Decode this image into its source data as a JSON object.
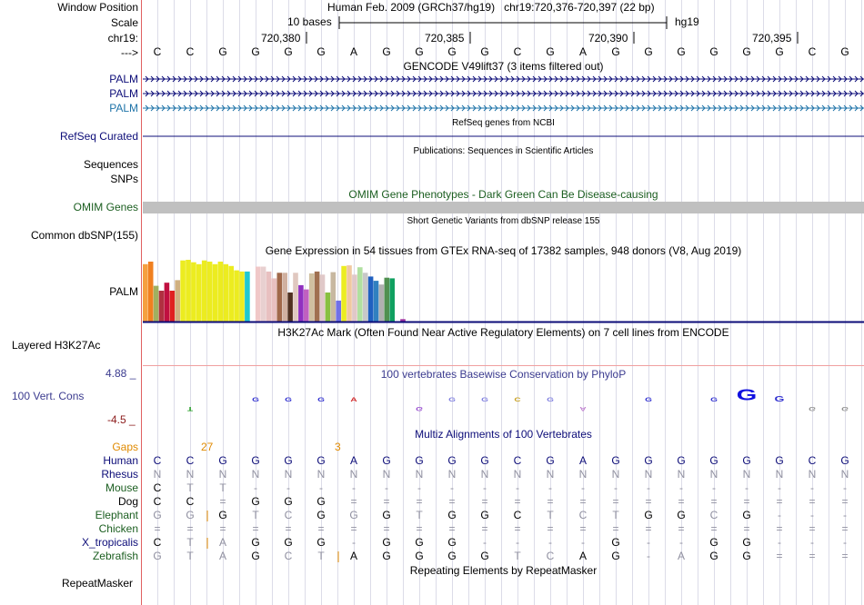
{
  "header": {
    "window_position_label": "Window Position",
    "title": "Human Feb. 2009 (GRCh37/hg19)",
    "position": "chr19:720,376-720,397 (22 bp)",
    "scale_label": "Scale",
    "scale_value": "10 bases",
    "assembly": "hg19",
    "chrom_label": "chr19:",
    "ticks": [
      "720,380",
      "720,385",
      "720,390",
      "720,395"
    ],
    "strand_label": "--->"
  },
  "sequence": [
    "C",
    "C",
    "G",
    "G",
    "G",
    "G",
    "A",
    "G",
    "G",
    "G",
    "G",
    "C",
    "G",
    "A",
    "G",
    "G",
    "G",
    "G",
    "G",
    "G",
    "C",
    "G"
  ],
  "gencode": {
    "title": "GENCODE V49lift37 (3 items filtered out)",
    "items": [
      {
        "label": "PALM",
        "color": "#0c0c78"
      },
      {
        "label": "PALM",
        "color": "#0c0c78"
      },
      {
        "label": "PALM",
        "color": "#1e73a8"
      }
    ]
  },
  "refseq": {
    "title": "RefSeq genes from NCBI",
    "label": "RefSeq Curated",
    "color": "#0c0c78"
  },
  "publications": {
    "title": "Publications: Sequences in Scientific Articles",
    "labels": [
      "Sequences",
      "SNPs"
    ]
  },
  "omim": {
    "title": "OMIM Gene Phenotypes - Dark Green Can Be Disease-causing",
    "label": "OMIM Genes",
    "color": "#1b5e20"
  },
  "dbsnp": {
    "title": "Short Genetic Variants from dbSNP release 155",
    "label": "Common dbSNP(155)"
  },
  "gtex": {
    "title": "Gene Expression in 54 tissues from GTEx RNA-seq of 17382 samples, 948 donors (V8, Aug 2019)",
    "label": "PALM",
    "bars": [
      {
        "v": 0.93,
        "c": "#f5a040"
      },
      {
        "v": 0.97,
        "c": "#f08020"
      },
      {
        "v": 0.58,
        "c": "#a0b060"
      },
      {
        "v": 0.5,
        "c": "#b03040"
      },
      {
        "v": 0.63,
        "c": "#c01040"
      },
      {
        "v": 0.5,
        "c": "#e02020"
      },
      {
        "v": 0.67,
        "c": "#d0b080"
      },
      {
        "v": 0.99,
        "c": "#ecec20"
      },
      {
        "v": 1.0,
        "c": "#ecec20"
      },
      {
        "v": 0.96,
        "c": "#ecec20"
      },
      {
        "v": 0.93,
        "c": "#ecec20"
      },
      {
        "v": 0.99,
        "c": "#ecec20"
      },
      {
        "v": 0.97,
        "c": "#ecec20"
      },
      {
        "v": 0.93,
        "c": "#ecec20"
      },
      {
        "v": 0.97,
        "c": "#ecec20"
      },
      {
        "v": 0.93,
        "c": "#ecec20"
      },
      {
        "v": 0.9,
        "c": "#ecec20"
      },
      {
        "v": 0.83,
        "c": "#ecec20"
      },
      {
        "v": 0.81,
        "c": "#ecec20"
      },
      {
        "v": 0.81,
        "c": "#20c8d0"
      },
      {
        "v": 0.0,
        "c": "#ffffff"
      },
      {
        "v": 0.89,
        "c": "#f0c8c8"
      },
      {
        "v": 0.89,
        "c": "#e8d0d0"
      },
      {
        "v": 0.81,
        "c": "#e8c0c0"
      },
      {
        "v": 0.7,
        "c": "#e8c0c0"
      },
      {
        "v": 0.79,
        "c": "#a0684a"
      },
      {
        "v": 0.79,
        "c": "#d0b0a0"
      },
      {
        "v": 0.47,
        "c": "#503020"
      },
      {
        "v": 0.79,
        "c": "#e0c8c0"
      },
      {
        "v": 0.59,
        "c": "#9030c0"
      },
      {
        "v": 0.52,
        "c": "#c060c0"
      },
      {
        "v": 0.78,
        "c": "#d0c0a0"
      },
      {
        "v": 0.81,
        "c": "#a07050"
      },
      {
        "v": 0.76,
        "c": "#e0c8c8"
      },
      {
        "v": 0.47,
        "c": "#88c040"
      },
      {
        "v": 0.8,
        "c": "#c8b8a0"
      },
      {
        "v": 0.34,
        "c": "#7070e8"
      },
      {
        "v": 0.9,
        "c": "#ecec20"
      },
      {
        "v": 0.91,
        "c": "#f0c8a0"
      },
      {
        "v": 0.76,
        "c": "#e0c8c8"
      },
      {
        "v": 0.88,
        "c": "#b0e0a0"
      },
      {
        "v": 0.79,
        "c": "#c8c8c8"
      },
      {
        "v": 0.73,
        "c": "#2060c0"
      },
      {
        "v": 0.66,
        "c": "#3080c0"
      },
      {
        "v": 0.6,
        "c": "#b0b0b0"
      },
      {
        "v": 0.71,
        "c": "#509050"
      },
      {
        "v": 0.7,
        "c": "#10a060"
      },
      {
        "v": 0.0,
        "c": "#ffffff"
      },
      {
        "v": 0.04,
        "c": "#a030a0"
      },
      {
        "v": 0.0,
        "c": "#ffffff"
      },
      {
        "v": 0.0,
        "c": "#ffffff"
      },
      {
        "v": 0.0,
        "c": "#ffffff"
      },
      {
        "v": 0.0,
        "c": "#ffffff"
      },
      {
        "v": 0.0,
        "c": "#ffffff"
      }
    ]
  },
  "h3k27ac": {
    "title": "H3K27Ac Mark (Often Found Near Active Regulatory Elements) on 7 cell lines from ENCODE",
    "label": "Layered H3K27Ac"
  },
  "conservation": {
    "title": "100 vertebrates Basewise Conservation by PhyloP",
    "label": "100 Vert. Cons",
    "ymax": "4.88 _",
    "ymin": "-4.5 _",
    "logo": [
      {
        "col": 1,
        "letter": "T",
        "v": -0.6,
        "color": "#1a9a1a"
      },
      {
        "col": 3,
        "letter": "G",
        "v": 0.3,
        "color": "#3030d0"
      },
      {
        "col": 4,
        "letter": "G",
        "v": 0.3,
        "color": "#3030d0"
      },
      {
        "col": 5,
        "letter": "G",
        "v": 0.4,
        "color": "#3030d0"
      },
      {
        "col": 6,
        "letter": "A",
        "v": 0.2,
        "color": "#d02020"
      },
      {
        "col": 8,
        "letter": "G",
        "v": -0.3,
        "color": "#9a50d0"
      },
      {
        "col": 9,
        "letter": "G",
        "v": 0.2,
        "color": "#8080e0"
      },
      {
        "col": 10,
        "letter": "G",
        "v": 0.2,
        "color": "#8080e0"
      },
      {
        "col": 11,
        "letter": "C",
        "v": 0.5,
        "color": "#c8a020"
      },
      {
        "col": 12,
        "letter": "G",
        "v": 0.2,
        "color": "#8080e0"
      },
      {
        "col": 13,
        "letter": "A",
        "v": -0.2,
        "color": "#c080d0"
      },
      {
        "col": 15,
        "letter": "G",
        "v": 0.3,
        "color": "#3030d0"
      },
      {
        "col": 17,
        "letter": "G",
        "v": 0.3,
        "color": "#3030d0"
      },
      {
        "col": 18,
        "letter": "G",
        "v": 1.8,
        "color": "#1010e0"
      },
      {
        "col": 19,
        "letter": "G",
        "v": 0.9,
        "color": "#3030d0"
      },
      {
        "col": 20,
        "letter": "G",
        "v": -0.3,
        "color": "#909090"
      },
      {
        "col": 21,
        "letter": "G",
        "v": -0.3,
        "color": "#909090"
      }
    ]
  },
  "multiz": {
    "title": "Multiz Alignments of 100 Vertebrates",
    "gaps_label": "Gaps",
    "gap_markers": [
      {
        "after_col": 1,
        "text": "27"
      },
      {
        "after_col": 5,
        "text": "3"
      }
    ],
    "rows": [
      {
        "species": "Human",
        "style": "human",
        "bases": [
          "C",
          "C",
          "G",
          "G",
          "G",
          "G",
          "A",
          "G",
          "G",
          "G",
          "G",
          "C",
          "G",
          "A",
          "G",
          "G",
          "G",
          "G",
          "G",
          "G",
          "C",
          "G"
        ]
      },
      {
        "species": "Rhesus",
        "style": "gray",
        "bases": [
          "N",
          "N",
          "N",
          "N",
          "N",
          "N",
          "N",
          "N",
          "N",
          "N",
          "N",
          "N",
          "N",
          "N",
          "N",
          "N",
          "N",
          "N",
          "N",
          "N",
          "N",
          "N"
        ]
      },
      {
        "species": "Mouse",
        "style": "mixed",
        "bases": [
          "C",
          "T",
          "T",
          "-",
          "-",
          "-",
          "-",
          "-",
          "-",
          "-",
          "-",
          "-",
          "-",
          "-",
          "-",
          "-",
          "-",
          "-",
          "-",
          "-",
          "-",
          "-"
        ]
      },
      {
        "species": "Dog",
        "style": "mixed",
        "bases": [
          "C",
          "C",
          "=",
          "G",
          "G",
          "G",
          "=",
          "=",
          "=",
          "=",
          "=",
          "=",
          "=",
          "=",
          "=",
          "=",
          "=",
          "=",
          "=",
          "=",
          "=",
          "="
        ]
      },
      {
        "species": "Elephant",
        "style": "mixed",
        "bases": [
          "G",
          "G",
          "G",
          "T",
          "C",
          "G",
          "G",
          "G",
          "T",
          "G",
          "G",
          "C",
          "T",
          "C",
          "T",
          "G",
          "G",
          "C",
          "G",
          "-",
          "-",
          "-"
        ]
      },
      {
        "species": "Chicken",
        "style": "gray",
        "bases": [
          "=",
          "=",
          "=",
          "=",
          "=",
          "=",
          "=",
          "=",
          "=",
          "=",
          "=",
          "=",
          "=",
          "=",
          "=",
          "=",
          "=",
          "=",
          "=",
          "=",
          "=",
          "="
        ]
      },
      {
        "species": "X_tropicalis",
        "style": "mixed",
        "bases": [
          "C",
          "T",
          "A",
          "G",
          "G",
          "G",
          "-",
          "G",
          "G",
          "G",
          "-",
          "-",
          "-",
          "-",
          "G",
          "-",
          "-",
          "G",
          "G",
          "-",
          "-",
          "-"
        ]
      },
      {
        "species": "Zebrafish",
        "style": "mixed",
        "bases": [
          "G",
          "T",
          "A",
          "G",
          "C",
          "T",
          "A",
          "G",
          "G",
          "G",
          "G",
          "T",
          "C",
          "A",
          "G",
          "-",
          "A",
          "G",
          "G",
          "=",
          "=",
          "="
        ]
      }
    ]
  },
  "repeatmasker": {
    "title": "Repeating Elements by RepeatMasker",
    "label": "RepeatMasker"
  }
}
